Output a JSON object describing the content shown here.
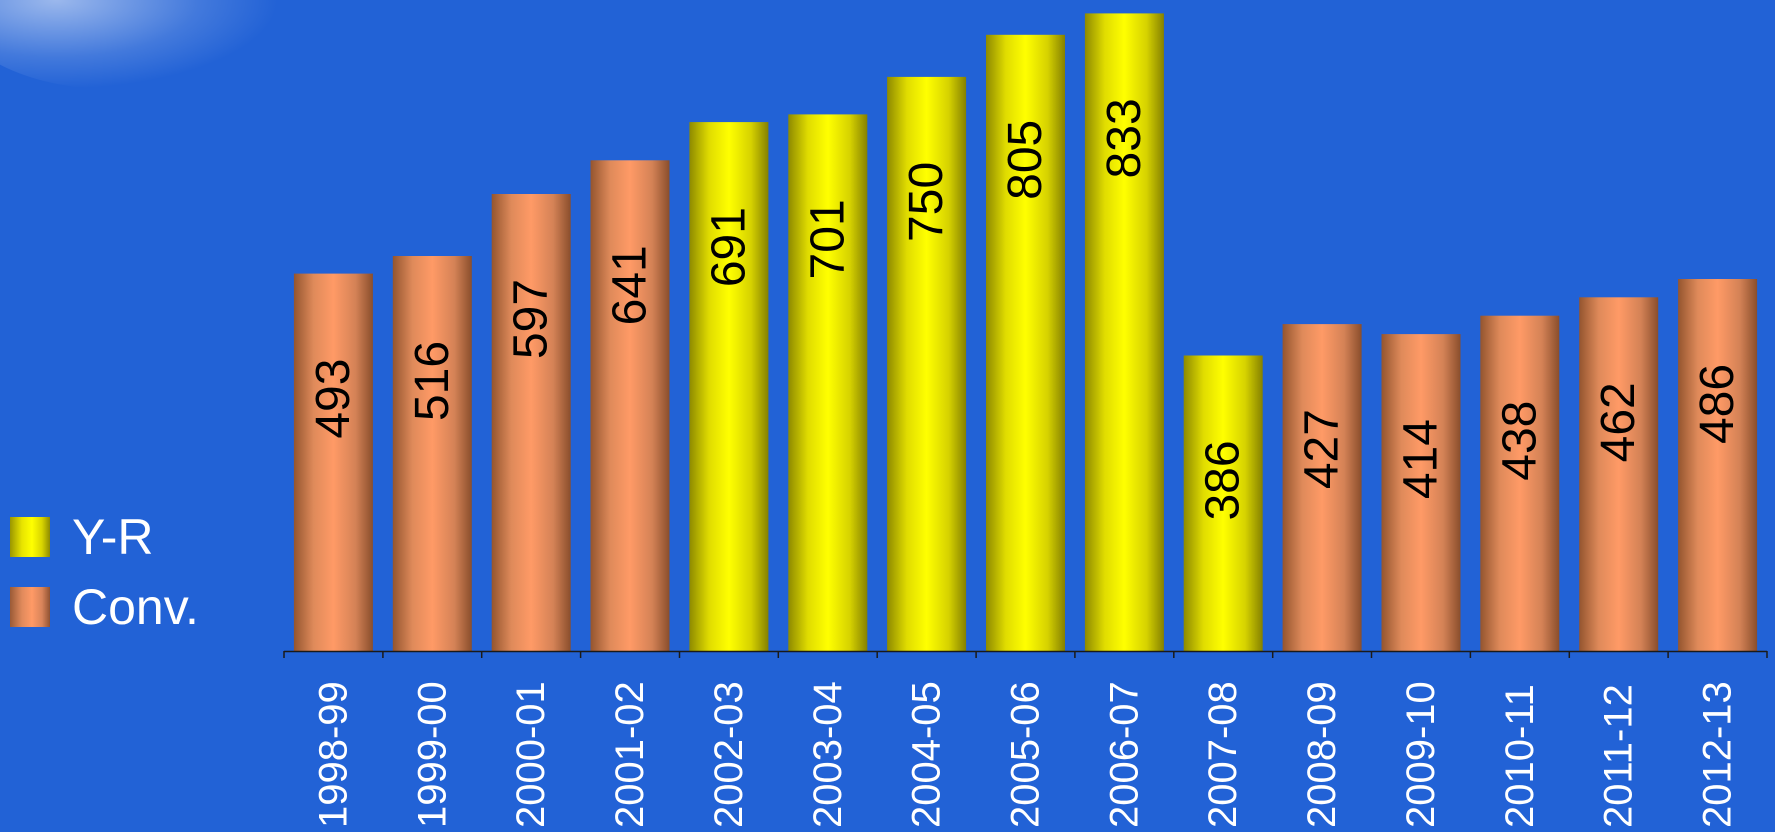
{
  "chart_data": {
    "type": "bar",
    "categories": [
      "1998-99",
      "1999-00",
      "2000-01",
      "2001-02",
      "2002-03",
      "2003-04",
      "2004-05",
      "2005-06",
      "2006-07",
      "2007-08",
      "2008-09",
      "2009-10",
      "2010-11",
      "2011-12",
      "2012-13"
    ],
    "values": [
      493,
      516,
      597,
      641,
      691,
      701,
      750,
      805,
      833,
      386,
      427,
      414,
      438,
      462,
      486
    ],
    "series_assignment": [
      "Conv.",
      "Conv.",
      "Conv.",
      "Conv.",
      "Y-R",
      "Y-R",
      "Y-R",
      "Y-R",
      "Y-R",
      "Y-R",
      "Conv.",
      "Conv.",
      "Conv.",
      "Conv.",
      "Conv."
    ],
    "legend": [
      {
        "name": "Y-R",
        "color": "#ffff00"
      },
      {
        "name": "Conv.",
        "color": "#ff9a66"
      }
    ],
    "legend_position": "left",
    "ylim": [
      0,
      840
    ],
    "grid": false,
    "title": "",
    "xlabel": "",
    "ylabel": ""
  },
  "colors": {
    "background": "#2262d6",
    "yr_bar": "#ffff00",
    "conv_bar": "#ff9a66",
    "axis": "#1a1a1a",
    "label_text": "#000000",
    "tick_text": "#ffffff"
  }
}
